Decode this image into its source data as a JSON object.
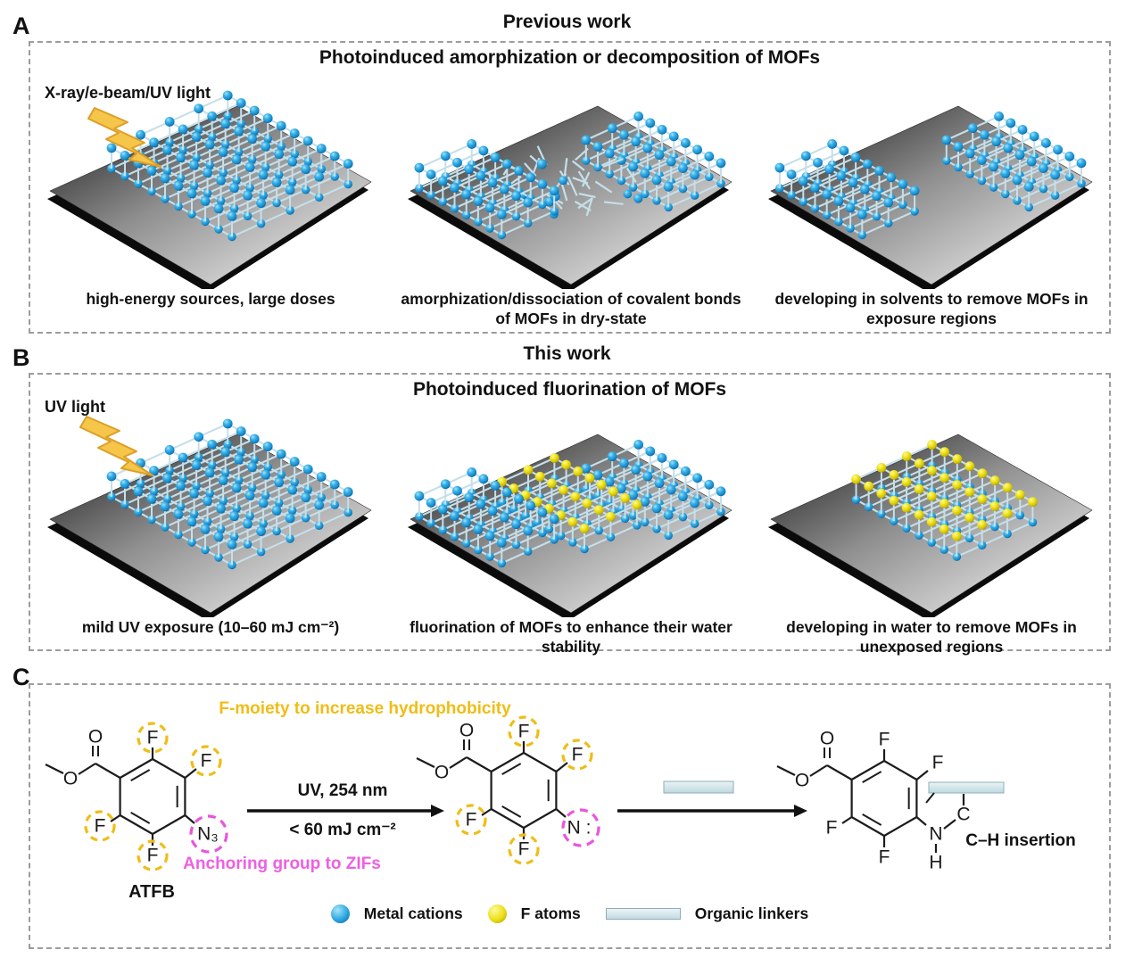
{
  "panel_a": {
    "letter": "A",
    "title": "Previous work",
    "subtitle": "Photoinduced amorphization or decomposition of MOFs",
    "figures": [
      {
        "label": "X-ray/e-beam/UV light",
        "caption": "high-energy sources, large doses"
      },
      {
        "caption": "amorphization/dissociation of covalent bonds of MOFs in dry-state"
      },
      {
        "caption": "developing in solvents to remove MOFs in exposure regions"
      }
    ]
  },
  "panel_b": {
    "letter": "B",
    "title": "This work",
    "subtitle": "Photoinduced fluorination of MOFs",
    "figures": [
      {
        "label": "UV light",
        "caption": "mild UV exposure (10–60 mJ cm⁻²)"
      },
      {
        "caption": "fluorination of MOFs to enhance their water stability"
      },
      {
        "caption": "developing in water to remove MOFs in unexposed regions"
      }
    ]
  },
  "panel_c": {
    "letter": "C",
    "annotations": {
      "f_moiety": "F-moiety to increase hydrophobicity",
      "anchoring": "Anchoring group to ZIFs",
      "molecule_name": "ATFB",
      "ch_insertion": "C–H insertion"
    },
    "arrow1": {
      "top": "UV, 254 nm",
      "bottom": "< 60 mJ cm⁻²"
    },
    "atoms": {
      "f": "F",
      "o": "O",
      "n3": "N₃",
      "nitrene": "N :",
      "n": "N",
      "h": "H",
      "c": "C"
    },
    "legend": [
      {
        "icon": "metal-cation-icon",
        "label": "Metal cations",
        "color": "#1e9ad8"
      },
      {
        "icon": "f-atom-icon",
        "label": "F atoms",
        "color": "#ece313"
      },
      {
        "icon": "organic-linker-icon",
        "label": "Organic linkers",
        "color": "#cfe3e8"
      }
    ]
  },
  "colors": {
    "metal_cation": "#1e9ad8",
    "f_atom": "#ece313",
    "organic_linker": "#cfe3e8",
    "highlight_yellow": "#f0bd16",
    "highlight_magenta": "#ee5fe2",
    "lightning": "#f6c64a"
  }
}
